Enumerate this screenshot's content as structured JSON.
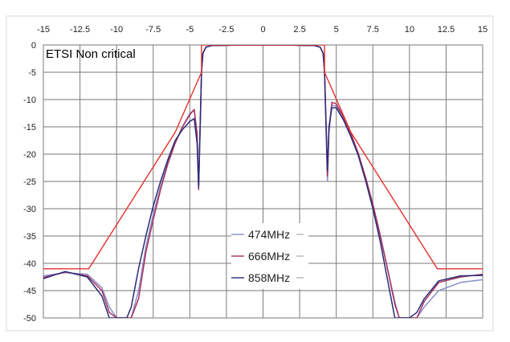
{
  "chart_data": {
    "type": "line",
    "title": "ETSI Non critical",
    "xlabel": "",
    "ylabel": "",
    "xlim": [
      -15,
      15
    ],
    "ylim": [
      -50,
      0
    ],
    "x_ticks": [
      -15,
      -12.5,
      -10,
      -7.5,
      -5,
      -2.5,
      0,
      2.5,
      5,
      7.5,
      10,
      12.5,
      15
    ],
    "x_tick_labels": [
      "-15",
      "-12.5",
      "-10",
      "-7.5",
      "-5",
      "-2.5",
      "0",
      "2.5",
      "5",
      "7.5",
      "10",
      "12.5",
      "15"
    ],
    "y_ticks": [
      0,
      -5,
      -10,
      -15,
      -20,
      -25,
      -30,
      -35,
      -40,
      -45,
      -50
    ],
    "y_tick_labels": [
      "0",
      "-5",
      "-10",
      "-15",
      "-20",
      "-25",
      "-30",
      "-35",
      "-40",
      "-45",
      "-50"
    ],
    "x_axis_position": "top",
    "grid": true,
    "legend_position": "lower-center",
    "mask": {
      "color": "#e8302c",
      "x": [
        -15,
        -11.9,
        -6,
        -4.2,
        -4.2,
        4.2,
        4.2,
        6,
        11.9,
        15
      ],
      "y": [
        -41,
        -41,
        -16,
        -5,
        0,
        0,
        -5,
        -16,
        -41,
        -41
      ]
    },
    "series": [
      {
        "name": "474MHz",
        "color": "#8a8fc8",
        "x": [
          -15,
          -13.5,
          -12,
          -11,
          -10.5,
          -10,
          -9.6,
          -9.3,
          -9.0,
          -8.5,
          -8,
          -7.5,
          -7,
          -6.5,
          -6,
          -5.5,
          -5,
          -4.7,
          -4.5,
          -4.4,
          -4.2,
          -4.1,
          -3.9,
          -3.5,
          -2,
          0,
          2,
          3.5,
          3.9,
          4.1,
          4.2,
          4.4,
          4.5,
          4.7,
          5,
          5.5,
          6,
          6.5,
          7,
          7.5,
          8,
          8.5,
          9,
          9.3,
          9.6,
          10,
          10.5,
          11,
          12,
          13.5,
          15
        ],
        "y": [
          -42.3,
          -41.7,
          -42.0,
          -44.5,
          -48,
          -50,
          -50,
          -50,
          -50,
          -45,
          -37,
          -31,
          -26,
          -21.5,
          -17.8,
          -15,
          -12.5,
          -12,
          -16,
          -26,
          -5,
          -1.5,
          -0.4,
          -0.1,
          -0.05,
          -0.05,
          -0.05,
          -0.1,
          -0.4,
          -1.5,
          -5,
          -25,
          -16,
          -11,
          -11.2,
          -13.5,
          -16.5,
          -20,
          -24.5,
          -29.5,
          -35,
          -41,
          -47,
          -50,
          -50,
          -50,
          -50,
          -48,
          -45,
          -43.5,
          -43.0
        ]
      },
      {
        "name": "666MHz",
        "color": "#a8325a",
        "x": [
          -15,
          -13.5,
          -12,
          -11,
          -10.5,
          -10,
          -9.6,
          -9.3,
          -9.0,
          -8.5,
          -8,
          -7.5,
          -7,
          -6.5,
          -6,
          -5.5,
          -5,
          -4.7,
          -4.5,
          -4.4,
          -4.2,
          -4.1,
          -3.9,
          -3.5,
          -2,
          0,
          2,
          3.5,
          3.9,
          4.1,
          4.2,
          4.4,
          4.5,
          4.7,
          5,
          5.5,
          6,
          6.5,
          7,
          7.5,
          8,
          8.5,
          9,
          9.3,
          9.6,
          10,
          10.5,
          11,
          12,
          13.5,
          15
        ],
        "y": [
          -42.6,
          -41.6,
          -42.3,
          -45,
          -49,
          -50,
          -50,
          -50,
          -50,
          -46.5,
          -38,
          -32,
          -26.5,
          -21.8,
          -18,
          -15,
          -12.8,
          -11.8,
          -16.5,
          -26.5,
          -5,
          -1.5,
          -0.4,
          -0.1,
          -0.05,
          -0.05,
          -0.05,
          -0.1,
          -0.4,
          -1.5,
          -5,
          -24,
          -15.5,
          -10.5,
          -10.8,
          -13.2,
          -16.2,
          -19.8,
          -24.2,
          -29.2,
          -34.8,
          -41,
          -47.5,
          -50,
          -50,
          -50,
          -50,
          -47,
          -43.5,
          -42.5,
          -42.0
        ]
      },
      {
        "name": "858MHz",
        "color": "#2a2a78",
        "x": [
          -15,
          -13.5,
          -12,
          -11,
          -10.5,
          -10,
          -9.6,
          -9.3,
          -9.0,
          -8.5,
          -8,
          -7.5,
          -7,
          -6.5,
          -6,
          -5.5,
          -5,
          -4.7,
          -4.5,
          -4.4,
          -4.2,
          -4.1,
          -3.9,
          -3.5,
          -2,
          0,
          2,
          3.5,
          3.9,
          4.1,
          4.2,
          4.4,
          4.5,
          4.7,
          5,
          5.5,
          6,
          6.5,
          7,
          7.5,
          8,
          8.5,
          9,
          9.3,
          9.6,
          10,
          10.5,
          11,
          12,
          13.5,
          15
        ],
        "y": [
          -42.8,
          -41.5,
          -42.5,
          -46,
          -50,
          -50,
          -50,
          -50,
          -48,
          -41,
          -35,
          -29.5,
          -25,
          -21,
          -17.5,
          -15.5,
          -14,
          -13.5,
          -18,
          -26,
          -5,
          -1.5,
          -0.4,
          -0.1,
          -0.05,
          -0.05,
          -0.05,
          -0.1,
          -0.4,
          -1.5,
          -5,
          -23,
          -15,
          -11.5,
          -11.5,
          -13.8,
          -16.8,
          -20.2,
          -24.8,
          -30,
          -36,
          -43,
          -50,
          -50,
          -50,
          -50,
          -49,
          -46.5,
          -43.2,
          -42.3,
          -42.2
        ]
      }
    ]
  }
}
